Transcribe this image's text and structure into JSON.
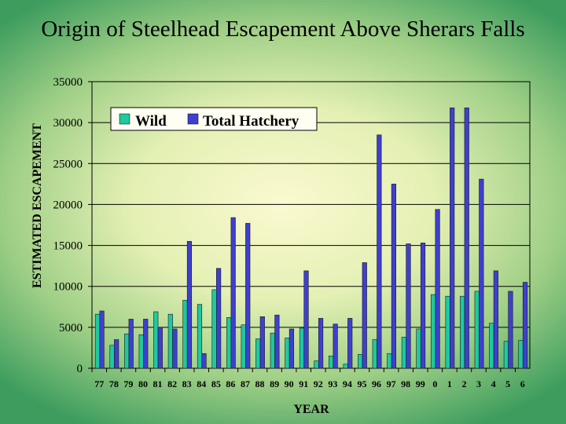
{
  "title": "Origin of Steelhead Escapement Above Sherars Falls",
  "chart_data": {
    "type": "bar",
    "title": "Origin of Steelhead Escapement Above Sherars Falls",
    "xlabel": "YEAR",
    "ylabel": "ESTIMATED ESCAPEMENT",
    "ylim": [
      0,
      35000
    ],
    "yticks": [
      0,
      5000,
      10000,
      15000,
      20000,
      25000,
      30000,
      35000
    ],
    "grid": true,
    "legend_position": "top-left",
    "categories": [
      "77",
      "78",
      "79",
      "80",
      "81",
      "82",
      "83",
      "84",
      "85",
      "86",
      "87",
      "88",
      "89",
      "90",
      "91",
      "92",
      "93",
      "94",
      "95",
      "96",
      "97",
      "98",
      "99",
      "0",
      "1",
      "2",
      "3",
      "4",
      "5",
      "6"
    ],
    "series": [
      {
        "name": "Wild",
        "color": "#1ec9a0",
        "values": [
          6600,
          2800,
          4200,
          4100,
          6900,
          6600,
          8300,
          7800,
          9600,
          6200,
          5300,
          3600,
          4300,
          3700,
          4900,
          900,
          1500,
          500,
          1700,
          3500,
          1800,
          3800,
          4800,
          9000,
          8800,
          8800,
          9400,
          5500,
          3300,
          3400
        ]
      },
      {
        "name": "Total Hatchery",
        "color": "#3f3fcf",
        "values": [
          7000,
          3500,
          6000,
          6000,
          5000,
          4800,
          15500,
          1800,
          12200,
          18400,
          17700,
          6300,
          6500,
          4800,
          11900,
          6100,
          5400,
          6100,
          12900,
          28500,
          22500,
          15200,
          15300,
          19400,
          31800,
          31800,
          23100,
          11900,
          9400,
          10500
        ]
      }
    ]
  }
}
